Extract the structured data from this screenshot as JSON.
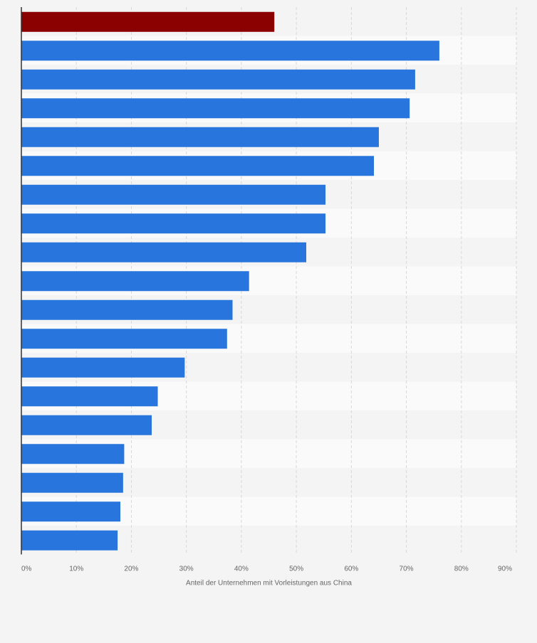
{
  "chart_data": {
    "type": "bar",
    "orientation": "horizontal",
    "xlabel": "Anteil der Unternehmen mit Vorleistungen aus China",
    "xlim": [
      0,
      90
    ],
    "x_ticks": [
      "0%",
      "10%",
      "20%",
      "30%",
      "40%",
      "50%",
      "60%",
      "70%",
      "80%",
      "90%"
    ],
    "grid": true,
    "values": [
      46,
      76,
      71.6,
      70.6,
      65,
      64.1,
      55.3,
      55.3,
      51.8,
      41.4,
      38.4,
      37.4,
      29.7,
      24.8,
      23.7,
      18.7,
      18.5,
      18,
      17.5
    ],
    "highlight_index": 0,
    "colors": {
      "bar": "#2876dd",
      "highlight": "#8b0000",
      "band_dark": "#f4f4f4",
      "band_light": "#fafafa",
      "grid": "#d8d8d8",
      "axis": "#333333",
      "tick_text": "#666666"
    }
  }
}
